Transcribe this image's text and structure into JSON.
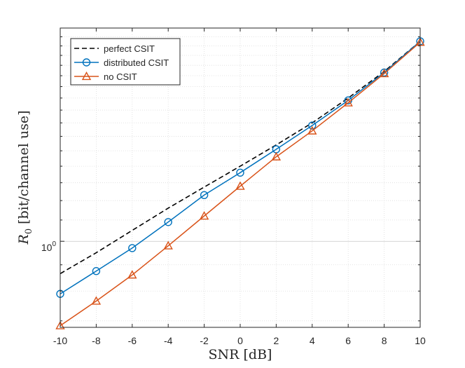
{
  "chart_data": {
    "type": "line",
    "title": "",
    "xlabel": "SNR [dB]",
    "ylabel": "R",
    "ylabel_sub": "0",
    "ylabel_unit": "[bit/channel use]",
    "x": [
      -10,
      -8,
      -6,
      -4,
      -2,
      0,
      2,
      4,
      6,
      8,
      10
    ],
    "xlim": [
      -10,
      10
    ],
    "x_ticks": [
      "-10",
      "-8",
      "-6",
      "-4",
      "-2",
      "0",
      "2",
      "4",
      "6",
      "8",
      "10"
    ],
    "ylim": [
      0.68,
      2.6
    ],
    "yscale": "log",
    "y_tick_label_base": "10",
    "y_tick_label_exp": "0",
    "y_tick_value": 1,
    "grid": true,
    "legend_position": "top-left",
    "series": [
      {
        "name": "perfect CSIT",
        "color": "#000000",
        "style": "dashed",
        "marker": "none",
        "values": [
          0.865,
          0.95,
          1.05,
          1.16,
          1.275,
          1.4,
          1.54,
          1.7,
          1.9,
          2.14,
          2.45
        ]
      },
      {
        "name": "distributed CSIT",
        "color": "#0072BD",
        "style": "solid",
        "marker": "circle",
        "values": [
          0.79,
          0.875,
          0.97,
          1.09,
          1.23,
          1.36,
          1.51,
          1.68,
          1.88,
          2.13,
          2.45
        ]
      },
      {
        "name": "no CSIT",
        "color": "#D95319",
        "style": "solid",
        "marker": "triangle",
        "values": [
          0.685,
          0.765,
          0.86,
          0.98,
          1.12,
          1.28,
          1.46,
          1.64,
          1.86,
          2.12,
          2.44
        ]
      }
    ]
  }
}
